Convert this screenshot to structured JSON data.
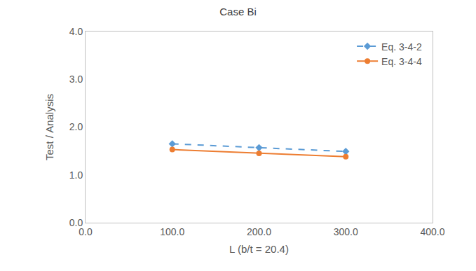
{
  "chart_data": {
    "type": "line",
    "title": "Case Bi",
    "x_label": "L (b/t = 20.4)",
    "y_label": "Test / Analysis",
    "x": [
      100,
      200,
      300
    ],
    "series": [
      {
        "name": "Eq. 3-4-2",
        "color": "#5b9bd5",
        "marker": "diamond",
        "line_style": "dashed",
        "values": [
          1.65,
          1.57,
          1.49
        ]
      },
      {
        "name": "Eq. 3-4-4",
        "color": "#ed7d31",
        "marker": "circle",
        "line_style": "solid",
        "values": [
          1.53,
          1.45,
          1.38
        ]
      }
    ],
    "xlim": [
      0,
      400
    ],
    "xticks": [
      {
        "value": 0,
        "label": "0.0"
      },
      {
        "value": 100,
        "label": "100.0"
      },
      {
        "value": 200,
        "label": "200.0"
      },
      {
        "value": 300,
        "label": "300.0"
      },
      {
        "value": 400,
        "label": "400.0"
      }
    ],
    "ylim": [
      0,
      4
    ],
    "yticks": [
      {
        "value": 0,
        "label": "0.0"
      },
      {
        "value": 1,
        "label": "1.0"
      },
      {
        "value": 2,
        "label": "2.0"
      },
      {
        "value": 3,
        "label": "3.0"
      },
      {
        "value": 4,
        "label": "4.0"
      }
    ],
    "grid": false,
    "legend": "top-right"
  }
}
